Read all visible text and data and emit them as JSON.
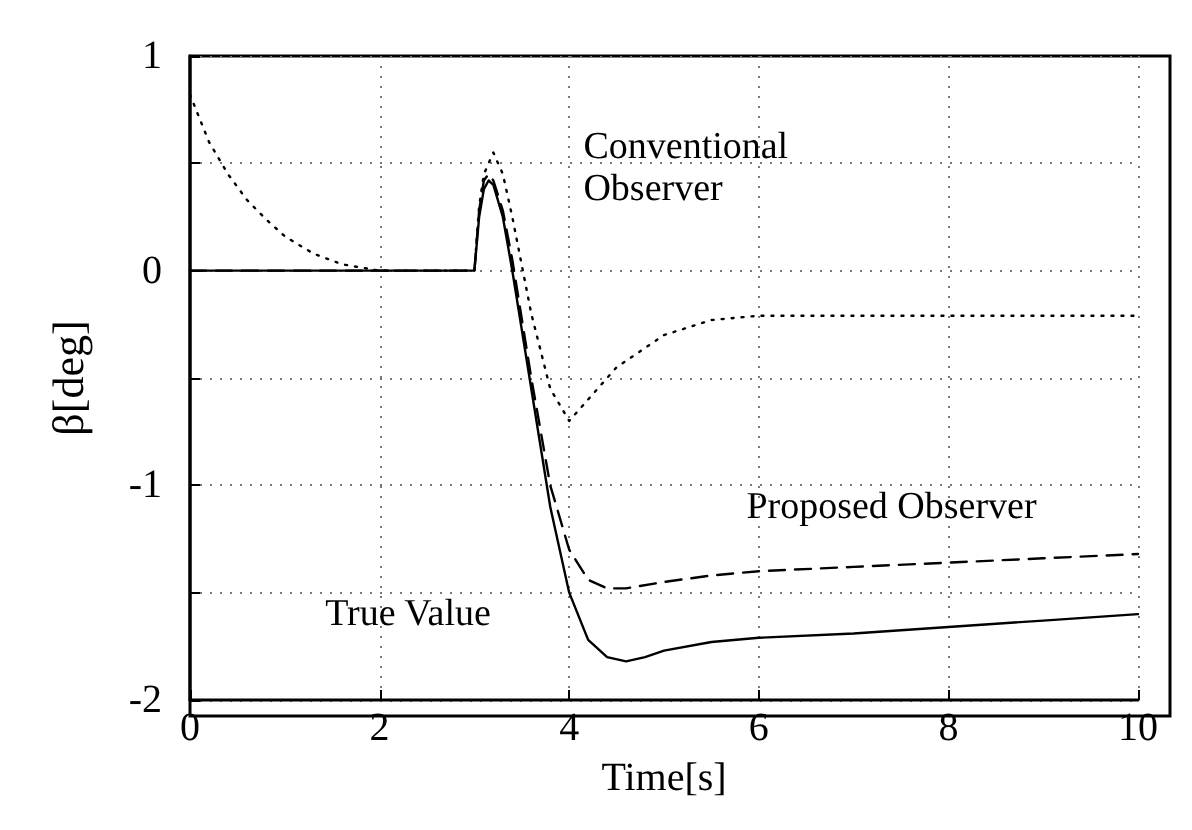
{
  "chart_data": {
    "type": "line",
    "xlabel": "Time[s]",
    "ylabel": "β[deg]",
    "xlim": [
      0,
      10
    ],
    "xticks": [
      0,
      2,
      4,
      6,
      8,
      10
    ],
    "ylim": [
      -2,
      1
    ],
    "yticks": [
      -2,
      {
        "value": -1.5,
        "label": null
      },
      -1,
      {
        "value": -0.5,
        "label": null
      },
      0,
      {
        "value": 0.5,
        "label": null
      },
      1
    ],
    "grid": true,
    "legend": false,
    "marker": "none",
    "series": [
      {
        "name": "True Value",
        "color": "#000000",
        "line_style": "solid",
        "x": [
          0,
          3.0,
          3.05,
          3.1,
          3.15,
          3.2,
          3.3,
          3.4,
          3.6,
          3.8,
          4.0,
          4.2,
          4.4,
          4.6,
          4.8,
          5.0,
          5.5,
          6,
          7,
          8,
          9,
          10
        ],
        "values": [
          0,
          0,
          0.25,
          0.38,
          0.42,
          0.4,
          0.25,
          0.0,
          -0.55,
          -1.1,
          -1.5,
          -1.72,
          -1.8,
          -1.82,
          -1.8,
          -1.77,
          -1.73,
          -1.71,
          -1.69,
          -1.66,
          -1.63,
          -1.6
        ]
      },
      {
        "name": "Proposed Observer",
        "color": "#000000",
        "line_style": "dashed",
        "x": [
          0,
          3.0,
          3.05,
          3.1,
          3.15,
          3.2,
          3.3,
          3.4,
          3.6,
          3.8,
          4.0,
          4.2,
          4.4,
          4.6,
          5.0,
          5.5,
          6,
          7,
          8,
          9,
          10
        ],
        "values": [
          0,
          0,
          0.28,
          0.42,
          0.45,
          0.42,
          0.28,
          0.05,
          -0.5,
          -1.0,
          -1.3,
          -1.44,
          -1.48,
          -1.48,
          -1.45,
          -1.42,
          -1.4,
          -1.38,
          -1.36,
          -1.34,
          -1.32
        ]
      },
      {
        "name": "Conventional Observer",
        "color": "#000000",
        "line_style": "dotted",
        "x": [
          0,
          0.2,
          0.4,
          0.6,
          0.8,
          1.0,
          1.3,
          1.6,
          2.0,
          2.5,
          3.0,
          3.05,
          3.1,
          3.2,
          3.3,
          3.4,
          3.6,
          3.8,
          4.0,
          4.2,
          4.5,
          5.0,
          5.5,
          6,
          7,
          8,
          9,
          10
        ],
        "values": [
          0.82,
          0.6,
          0.45,
          0.33,
          0.24,
          0.16,
          0.08,
          0.03,
          0,
          0,
          0,
          0.3,
          0.45,
          0.55,
          0.45,
          0.25,
          -0.2,
          -0.55,
          -0.7,
          -0.6,
          -0.45,
          -0.3,
          -0.23,
          -0.21,
          -0.21,
          -0.21,
          -0.21,
          -0.21
        ]
      }
    ]
  }
}
